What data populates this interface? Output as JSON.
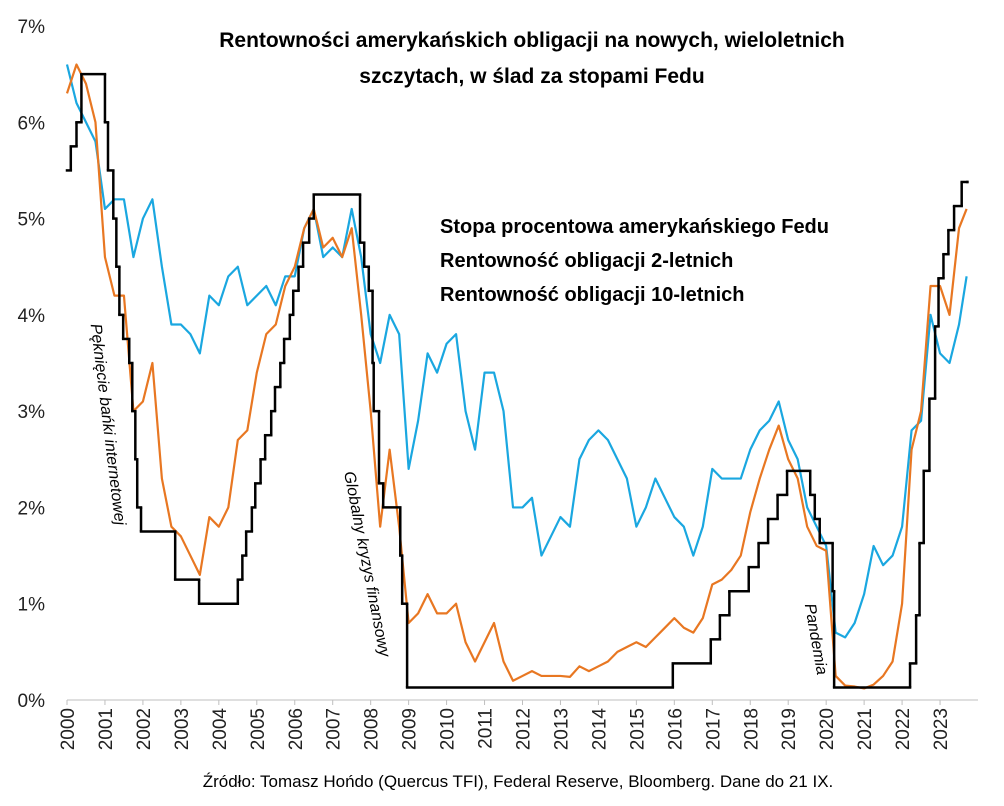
{
  "chart_data": {
    "type": "line",
    "title": [
      "Rentowności amerykańskich obligacji na nowych, wieloletnich",
      "szczytach, w ślad za stopami Fedu"
    ],
    "source": "Źródło: Tomasz Hońdo (Quercus TFI), Federal Reserve, Bloomberg. Dane do 21 IX.",
    "annotations": [
      "Pęknięcie bańki internetowej",
      "Globalny kryzys finansowy",
      "Pandemia"
    ],
    "xlim": [
      2000,
      2024
    ],
    "xticks": [
      2000,
      2001,
      2002,
      2003,
      2004,
      2005,
      2006,
      2007,
      2008,
      2009,
      2010,
      2011,
      2012,
      2013,
      2014,
      2015,
      2016,
      2017,
      2018,
      2019,
      2020,
      2021,
      2022,
      2023
    ],
    "ylim": [
      0,
      7
    ],
    "yticks": [
      {
        "value": 0,
        "label": "0%"
      },
      {
        "value": 1,
        "label": "1%"
      },
      {
        "value": 2,
        "label": "2%"
      },
      {
        "value": 3,
        "label": "3%"
      },
      {
        "value": 4,
        "label": "4%"
      },
      {
        "value": 5,
        "label": "5%"
      },
      {
        "value": 6,
        "label": "6%"
      },
      {
        "value": 7,
        "label": "7%"
      }
    ],
    "grid": false,
    "series": [
      {
        "name": "Stopa procentowa amerykańskiego Fedu",
        "color": "#000000",
        "drawstyle": "steps-post",
        "x": [
          2000.0,
          2000.1,
          2000.25,
          2000.38,
          2001.0,
          2001.08,
          2001.22,
          2001.3,
          2001.38,
          2001.48,
          2001.64,
          2001.72,
          2001.8,
          2001.85,
          2001.95,
          2002.85,
          2003.48,
          2004.5,
          2004.62,
          2004.72,
          2004.87,
          2004.96,
          2005.1,
          2005.22,
          2005.38,
          2005.48,
          2005.62,
          2005.72,
          2005.87,
          2005.96,
          2006.1,
          2006.22,
          2006.38,
          2006.5,
          2007.72,
          2007.83,
          2007.95,
          2008.05,
          2008.08,
          2008.22,
          2008.33,
          2008.78,
          2008.83,
          2008.96,
          2015.96,
          2016.96,
          2017.2,
          2017.45,
          2017.96,
          2018.22,
          2018.47,
          2018.72,
          2018.97,
          2019.58,
          2019.7,
          2019.83,
          2020.17,
          2020.21,
          2022.21,
          2022.37,
          2022.46,
          2022.57,
          2022.72,
          2022.87,
          2022.96,
          2023.09,
          2023.22,
          2023.37,
          2023.57,
          2023.72
        ],
        "values": [
          5.5,
          5.75,
          6.0,
          6.5,
          6.0,
          5.5,
          5.0,
          4.5,
          4.0,
          3.75,
          3.5,
          3.0,
          2.5,
          2.0,
          1.75,
          1.25,
          1.0,
          1.25,
          1.5,
          1.75,
          2.0,
          2.25,
          2.5,
          2.75,
          3.0,
          3.25,
          3.5,
          3.75,
          4.0,
          4.25,
          4.5,
          4.75,
          5.0,
          5.25,
          4.75,
          4.5,
          4.25,
          3.5,
          3.0,
          2.25,
          2.0,
          1.5,
          1.0,
          0.13,
          0.38,
          0.63,
          0.88,
          1.13,
          1.38,
          1.63,
          1.88,
          2.13,
          2.38,
          2.13,
          1.88,
          1.63,
          1.13,
          0.13,
          0.38,
          0.88,
          1.63,
          2.38,
          3.13,
          3.88,
          4.38,
          4.63,
          4.88,
          5.13,
          5.38,
          5.38
        ]
      },
      {
        "name": "Rentowność obligacji 2-letnich",
        "color": "#e87722",
        "x": [
          2000.0,
          2000.25,
          2000.5,
          2000.75,
          2001.0,
          2001.25,
          2001.5,
          2001.75,
          2002.0,
          2002.25,
          2002.5,
          2002.75,
          2003.0,
          2003.25,
          2003.5,
          2003.75,
          2004.0,
          2004.25,
          2004.5,
          2004.75,
          2005.0,
          2005.25,
          2005.5,
          2005.75,
          2006.0,
          2006.25,
          2006.5,
          2006.75,
          2007.0,
          2007.25,
          2007.5,
          2007.75,
          2008.0,
          2008.25,
          2008.5,
          2008.75,
          2009.0,
          2009.25,
          2009.5,
          2009.75,
          2010.0,
          2010.25,
          2010.5,
          2010.75,
          2011.0,
          2011.25,
          2011.5,
          2011.75,
          2012.0,
          2012.25,
          2012.5,
          2012.75,
          2013.0,
          2013.25,
          2013.5,
          2013.75,
          2014.0,
          2014.25,
          2014.5,
          2014.75,
          2015.0,
          2015.25,
          2015.5,
          2015.75,
          2016.0,
          2016.25,
          2016.5,
          2016.75,
          2017.0,
          2017.25,
          2017.5,
          2017.75,
          2018.0,
          2018.25,
          2018.5,
          2018.75,
          2019.0,
          2019.25,
          2019.5,
          2019.75,
          2020.0,
          2020.25,
          2020.5,
          2020.75,
          2021.0,
          2021.25,
          2021.5,
          2021.75,
          2022.0,
          2022.25,
          2022.5,
          2022.75,
          2023.0,
          2023.25,
          2023.5,
          2023.7
        ],
        "values": [
          6.3,
          6.6,
          6.4,
          6.0,
          4.6,
          4.2,
          4.2,
          3.0,
          3.1,
          3.5,
          2.3,
          1.8,
          1.7,
          1.5,
          1.3,
          1.9,
          1.8,
          2.0,
          2.7,
          2.8,
          3.4,
          3.8,
          3.9,
          4.3,
          4.5,
          4.9,
          5.1,
          4.7,
          4.8,
          4.6,
          4.9,
          4.0,
          3.0,
          1.8,
          2.6,
          1.8,
          0.8,
          0.9,
          1.1,
          0.9,
          0.9,
          1.0,
          0.6,
          0.4,
          0.6,
          0.8,
          0.4,
          0.2,
          0.25,
          0.3,
          0.25,
          0.25,
          0.25,
          0.24,
          0.35,
          0.3,
          0.35,
          0.4,
          0.5,
          0.55,
          0.6,
          0.55,
          0.65,
          0.75,
          0.85,
          0.75,
          0.7,
          0.85,
          1.2,
          1.25,
          1.35,
          1.5,
          1.95,
          2.3,
          2.6,
          2.85,
          2.5,
          2.3,
          1.8,
          1.6,
          1.55,
          0.25,
          0.15,
          0.14,
          0.12,
          0.16,
          0.25,
          0.4,
          1.0,
          2.6,
          3.0,
          4.3,
          4.3,
          4.0,
          4.9,
          5.1
        ]
      },
      {
        "name": "Rentowność obligacji 10-letnich",
        "color": "#1aa7e0",
        "x": [
          2000.0,
          2000.25,
          2000.5,
          2000.75,
          2001.0,
          2001.25,
          2001.5,
          2001.75,
          2002.0,
          2002.25,
          2002.5,
          2002.75,
          2003.0,
          2003.25,
          2003.5,
          2003.75,
          2004.0,
          2004.25,
          2004.5,
          2004.75,
          2005.0,
          2005.25,
          2005.5,
          2005.75,
          2006.0,
          2006.25,
          2006.5,
          2006.75,
          2007.0,
          2007.25,
          2007.5,
          2007.75,
          2008.0,
          2008.25,
          2008.5,
          2008.75,
          2009.0,
          2009.25,
          2009.5,
          2009.75,
          2010.0,
          2010.25,
          2010.5,
          2010.75,
          2011.0,
          2011.25,
          2011.5,
          2011.75,
          2012.0,
          2012.25,
          2012.5,
          2012.75,
          2013.0,
          2013.25,
          2013.5,
          2013.75,
          2014.0,
          2014.25,
          2014.5,
          2014.75,
          2015.0,
          2015.25,
          2015.5,
          2015.75,
          2016.0,
          2016.25,
          2016.5,
          2016.75,
          2017.0,
          2017.25,
          2017.5,
          2017.75,
          2018.0,
          2018.25,
          2018.5,
          2018.75,
          2019.0,
          2019.25,
          2019.5,
          2019.75,
          2020.0,
          2020.25,
          2020.5,
          2020.75,
          2021.0,
          2021.25,
          2021.5,
          2021.75,
          2022.0,
          2022.25,
          2022.5,
          2022.75,
          2023.0,
          2023.25,
          2023.5,
          2023.7
        ],
        "values": [
          6.6,
          6.2,
          6.0,
          5.8,
          5.1,
          5.2,
          5.2,
          4.6,
          5.0,
          5.2,
          4.5,
          3.9,
          3.9,
          3.8,
          3.6,
          4.2,
          4.1,
          4.4,
          4.5,
          4.1,
          4.2,
          4.3,
          4.1,
          4.4,
          4.4,
          4.9,
          5.1,
          4.6,
          4.7,
          4.6,
          5.1,
          4.6,
          3.8,
          3.5,
          4.0,
          3.8,
          2.4,
          2.9,
          3.6,
          3.4,
          3.7,
          3.8,
          3.0,
          2.6,
          3.4,
          3.4,
          3.0,
          2.0,
          2.0,
          2.1,
          1.5,
          1.7,
          1.9,
          1.8,
          2.5,
          2.7,
          2.8,
          2.7,
          2.5,
          2.3,
          1.8,
          2.0,
          2.3,
          2.1,
          1.9,
          1.8,
          1.5,
          1.8,
          2.4,
          2.3,
          2.3,
          2.3,
          2.6,
          2.8,
          2.9,
          3.1,
          2.7,
          2.5,
          2.0,
          1.8,
          1.6,
          0.7,
          0.65,
          0.8,
          1.1,
          1.6,
          1.4,
          1.5,
          1.8,
          2.8,
          2.9,
          4.0,
          3.6,
          3.5,
          3.9,
          4.4
        ]
      }
    ]
  }
}
